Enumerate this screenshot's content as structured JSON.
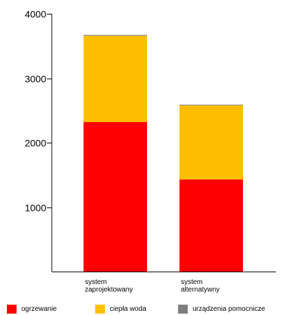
{
  "chart_data": {
    "type": "bar",
    "stacked": true,
    "categories": [
      [
        "system",
        "zaprojektowany"
      ],
      [
        "system",
        "alternatywny"
      ]
    ],
    "series": [
      {
        "name": "ogrzewanie",
        "color": "#ff0000",
        "values": [
          2320,
          1430
        ]
      },
      {
        "name": "ciepła woda",
        "color": "#ffbf00",
        "values": [
          1340,
          1150
        ]
      },
      {
        "name": "urządzenia pomocnicze",
        "color": "#7f7f7f",
        "values": [
          12,
          10
        ]
      }
    ],
    "ylim": [
      0,
      4000
    ],
    "yticks": [
      1000,
      2000,
      3000,
      4000
    ],
    "grid": false,
    "legend_position": "bottom",
    "title": "",
    "xlabel": "",
    "ylabel": ""
  }
}
